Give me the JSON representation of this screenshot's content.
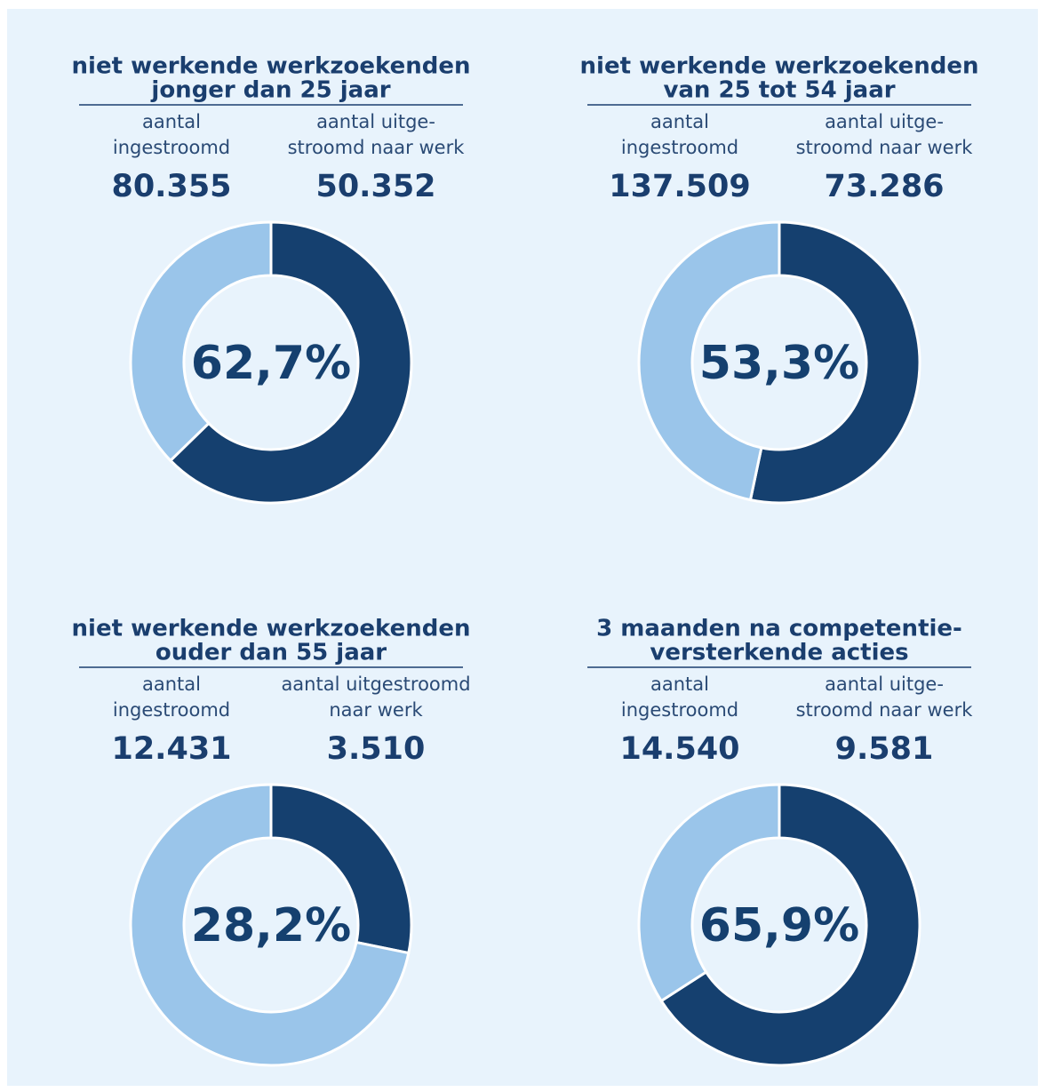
{
  "chart_data": [
    {
      "type": "donut",
      "title": [
        "niet werkende werkzoekenden",
        "jonger dan 25 jaar"
      ],
      "stats": [
        {
          "label": [
            "aantal",
            "ingestroomd"
          ],
          "value": 80355,
          "value_label": "80.355"
        },
        {
          "label": [
            "aantal uitge-",
            "stroomd naar werk"
          ],
          "value": 50352,
          "value_label": "50.352"
        }
      ],
      "values": [
        62.7,
        37.3
      ],
      "value_labels": [
        "62,7%",
        null
      ],
      "colors": [
        "#15406f",
        "#9ac5ea"
      ]
    },
    {
      "type": "donut",
      "title": [
        "niet werkende werkzoekenden",
        "van 25 tot 54 jaar"
      ],
      "stats": [
        {
          "label": [
            "aantal",
            "ingestroomd"
          ],
          "value": 137509,
          "value_label": "137.509"
        },
        {
          "label": [
            "aantal uitge-",
            "stroomd naar werk"
          ],
          "value": 73286,
          "value_label": "73.286"
        }
      ],
      "values": [
        53.3,
        46.7
      ],
      "value_labels": [
        "53,3%",
        null
      ],
      "colors": [
        "#15406f",
        "#9ac5ea"
      ]
    },
    {
      "type": "donut",
      "title": [
        "niet werkende werkzoekenden",
        "ouder dan 55 jaar"
      ],
      "stats": [
        {
          "label": [
            "aantal",
            "ingestroomd"
          ],
          "value": 12431,
          "value_label": "12.431"
        },
        {
          "label": [
            "aantal uitgestroomd",
            "naar werk"
          ],
          "value": 3510,
          "value_label": "3.510"
        }
      ],
      "values": [
        28.2,
        71.8
      ],
      "value_labels": [
        "28,2%",
        null
      ],
      "colors": [
        "#15406f",
        "#9ac5ea"
      ]
    },
    {
      "type": "donut",
      "title": [
        "3 maanden na competentie-",
        "versterkende acties"
      ],
      "stats": [
        {
          "label": [
            "aantal",
            "ingestroomd"
          ],
          "value": 14540,
          "value_label": "14.540"
        },
        {
          "label": [
            "aantal uitge-",
            "stroomd naar werk"
          ],
          "value": 9581,
          "value_label": "9.581"
        }
      ],
      "values": [
        65.9,
        34.1
      ],
      "value_labels": [
        "65,9%",
        null
      ],
      "colors": [
        "#15406f",
        "#9ac5ea"
      ]
    }
  ]
}
